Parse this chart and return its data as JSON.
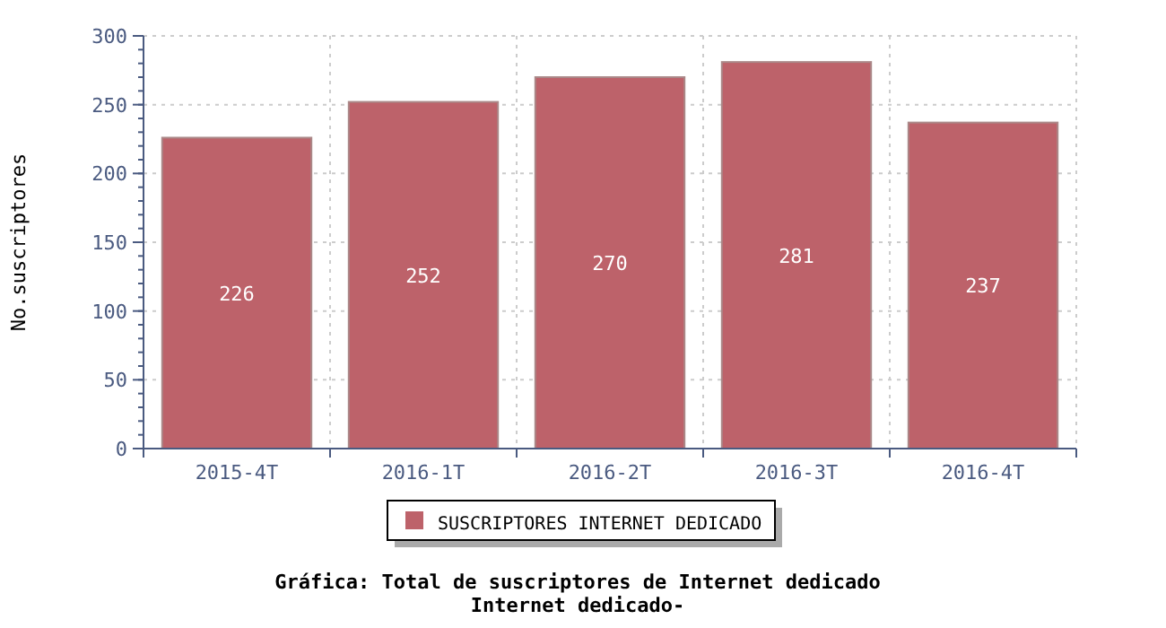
{
  "chart_data": {
    "type": "bar",
    "title": "Gráfica: Total de suscriptores de Internet dedicado",
    "subtitle": "Internet dedicado-",
    "ylabel": "No.suscriptores",
    "categories": [
      "2015-4T",
      "2016-1T",
      "2016-2T",
      "2016-3T",
      "2016-4T"
    ],
    "series": [
      {
        "name": "SUSCRIPTORES INTERNET DEDICADO",
        "color": "#bd626a",
        "values": [
          226,
          252,
          270,
          281,
          237
        ]
      }
    ],
    "ylim": [
      0,
      300
    ],
    "yticks": [
      0,
      50,
      100,
      150,
      200,
      250,
      300
    ],
    "grid": true,
    "data_labels": true,
    "legend": "bottom"
  }
}
